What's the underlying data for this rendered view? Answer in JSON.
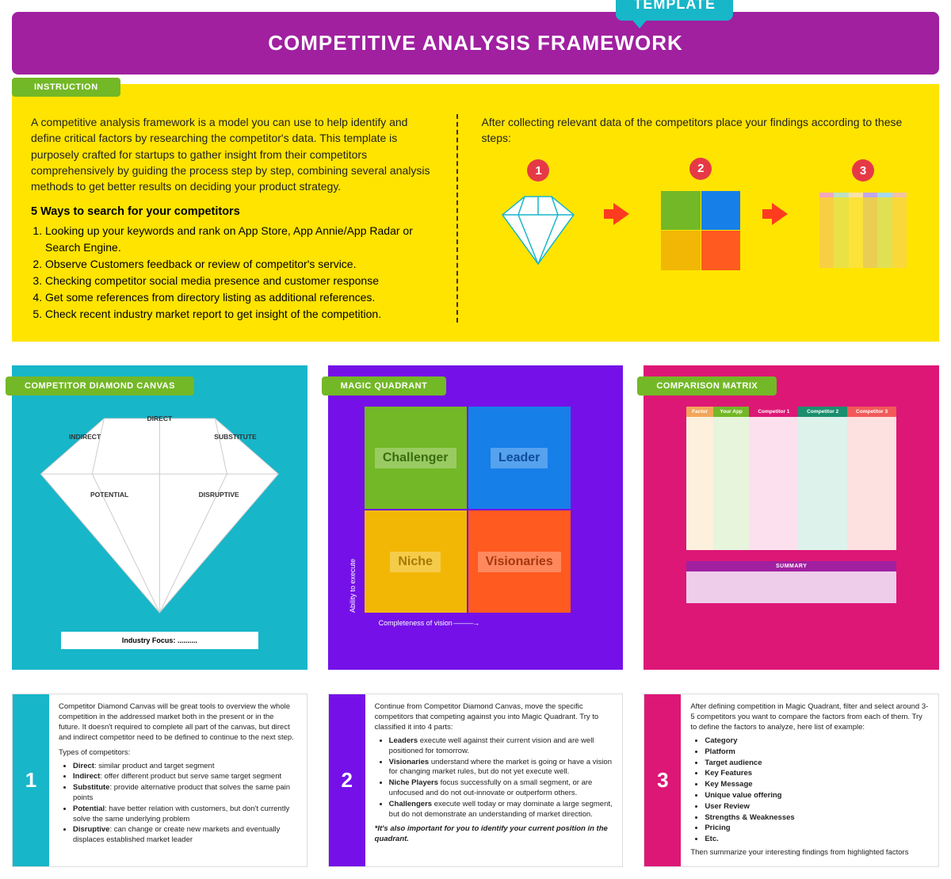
{
  "header": {
    "title": "COMPETITIVE ANALYSIS FRAMEWORK",
    "badge": "TEMPLATE",
    "bg": "#a020a0",
    "badge_bg": "#17b6c9"
  },
  "instruction": {
    "label": "INSTRUCTION",
    "label_bg": "#73b826",
    "box_bg": "#ffe400",
    "intro": "A competitive analysis framework is a model you can use to help identify and define critical factors by researching the competitor's data. This template is purposely crafted for startups to gather insight from their competitors comprehensively by guiding the process step by step, combining several analysis methods to get better results on deciding your product strategy.",
    "ways_heading": "5 Ways to search for your competitors",
    "ways": [
      "Looking up your keywords and rank on App Store, App Annie/App Radar or Search Engine.",
      "Observe Customers feedback or review of competitor's service.",
      "Checking competitor social media presence and customer response",
      "Get some references from directory listing as additional references.",
      "Check recent industry market report to get insight of the competition."
    ],
    "steps_intro": "After collecting relevant data of the competitors place your findings according to these steps:",
    "steps": [
      {
        "n": "1",
        "bg": "#e63946"
      },
      {
        "n": "2",
        "bg": "#e63946"
      },
      {
        "n": "3",
        "bg": "#e63946"
      }
    ],
    "arrow_color": "#ff3b1f"
  },
  "quadrant_colors": {
    "tl": "#73b826",
    "tr": "#177fe8",
    "bl": "#f2b705",
    "br": "#ff5a1f"
  },
  "matrix_mini_colors": [
    "#f2a6c2",
    "#bde0c8",
    "#f7e1a6",
    "#c2a6f2",
    "#a6d9f2",
    "#f2c2a6"
  ],
  "diamond_card": {
    "label": "COMPETITOR DIAMOND CANVAS",
    "label_bg": "#73b826",
    "bg": "#17b6c9",
    "sections": {
      "direct": "DIRECT",
      "indirect": "INDIRECT",
      "substitute": "SUBSTITUTE",
      "potential": "POTENTIAL",
      "disruptive": "DISRUPTIVE"
    },
    "industry": "Industry Focus: ..........",
    "stroke": "#17b6c9"
  },
  "quad_card": {
    "label": "MAGIC QUADRANT",
    "label_bg": "#73b826",
    "bg": "#7511e8",
    "cells": {
      "tl": {
        "text": "Challenger",
        "bg": "#73b826",
        "fg": "#3a6b0f"
      },
      "tr": {
        "text": "Leader",
        "bg": "#177fe8",
        "fg": "#0d4d9e"
      },
      "bl": {
        "text": "Niche",
        "bg": "#f2b705",
        "fg": "#a67a02"
      },
      "br": {
        "text": "Visionaries",
        "bg": "#ff5a1f",
        "fg": "#a6370f"
      }
    },
    "axis_y": "Ability to execute",
    "axis_x": "Completeness of vision"
  },
  "matrix_card": {
    "label": "COMPARISON MATRIX",
    "label_bg": "#73b826",
    "bg": "#dd1776",
    "headers": [
      {
        "t": "Factor",
        "bg": "#f2a65a"
      },
      {
        "t": "Your App",
        "bg": "#73b826"
      },
      {
        "t": "Competitor 1",
        "bg": "#dd1776"
      },
      {
        "t": "Competitor 2",
        "bg": "#1a8f6e"
      },
      {
        "t": "Competitor 3",
        "bg": "#f25a5a"
      }
    ],
    "col_bgs": [
      "#fdf0dc",
      "#e6f5dc",
      "#fde0ee",
      "#dcf2eb",
      "#fde0e0"
    ],
    "rows": 6,
    "summary_label": "SUMMARY",
    "summary_h_bg": "#a020a0",
    "summary_body_bg": "#eecdea"
  },
  "explain": [
    {
      "n": "1",
      "bg": "#17b6c9",
      "intro": "Competitor Diamond Canvas will be great tools to overview the whole competition in the addressed market both in the present or in the future.  It doesn't required to complete all part of the canvas, but direct and indirect competitor need to be defined to continue to the next step.",
      "sub": "Types of competitors:",
      "items": [
        {
          "b": "Direct",
          "t": ": similar product and target segment"
        },
        {
          "b": "Indirect",
          "t": ": offer different product but serve same target segment"
        },
        {
          "b": "Substitute",
          "t": ": provide alternative product that solves the same pain points"
        },
        {
          "b": "Potential",
          "t": ": have better relation with customers, but don't currently solve the same underlying problem"
        },
        {
          "b": "Disruptive",
          "t": ": can change or create new markets and eventually displaces established market leader"
        }
      ]
    },
    {
      "n": "2",
      "bg": "#7511e8",
      "intro": "Continue from Competitor Diamond Canvas, move the specific competitors that competing against you into Magic Quadrant. Try to classified it into 4 parts:",
      "items": [
        {
          "b": "Leaders",
          "t": " execute well against their current vision and are well positioned for tomorrow."
        },
        {
          "b": "Visionaries",
          "t": " understand where the market is going or have a vision for changing market rules, but do not yet execute well."
        },
        {
          "b": "Niche Players",
          "t": " focus successfully on a small segment, or are unfocused and do not out-innovate or outperform others."
        },
        {
          "b": "Challengers",
          "t": " execute well today or may dominate a large segment, but do not demonstrate an understanding of market direction."
        }
      ],
      "footnote": "*It's also important for you to identify your current position in the quadrant."
    },
    {
      "n": "3",
      "bg": "#dd1776",
      "intro": "After defining competition in Magic Quadrant, filter and select around 3-5 competitors you want to compare the factors from each of them. Try to define the factors to analyze, here list of example:",
      "items": [
        {
          "b": "Category",
          "t": ""
        },
        {
          "b": "Platform",
          "t": ""
        },
        {
          "b": "Target audience",
          "t": ""
        },
        {
          "b": "Key Features",
          "t": ""
        },
        {
          "b": "Key Message",
          "t": ""
        },
        {
          "b": "Unique value offering",
          "t": ""
        },
        {
          "b": "User Review",
          "t": ""
        },
        {
          "b": "Strengths & Weaknesses",
          "t": ""
        },
        {
          "b": "Pricing",
          "t": ""
        },
        {
          "b": "Etc.",
          "t": ""
        }
      ],
      "outro": "Then summarize your interesting findings from highlighted factors"
    }
  ]
}
